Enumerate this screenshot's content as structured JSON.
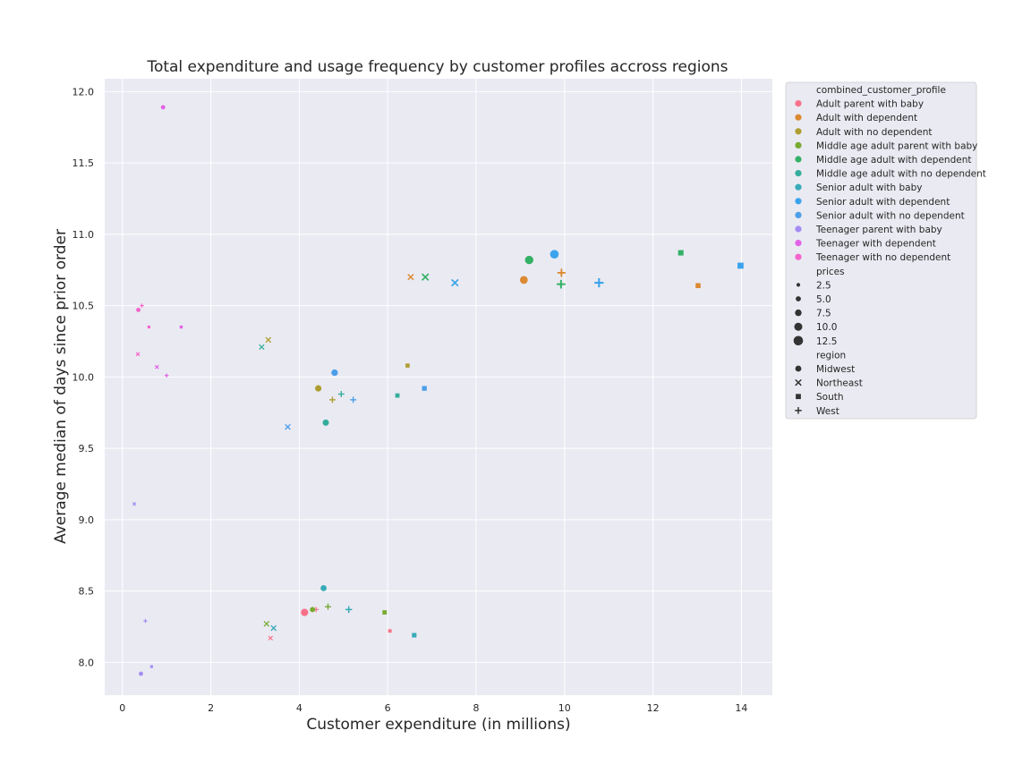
{
  "chart_data": {
    "type": "scatter",
    "title": "Total expenditure and usage frequency by customer profiles accross regions",
    "xlabel": "Customer expenditure (in millions)",
    "ylabel": "Average median of days since prior order",
    "xlim": [
      -0.4,
      14.7
    ],
    "ylim": [
      7.77,
      12.09
    ],
    "x_ticks": [
      0,
      2,
      4,
      6,
      8,
      10,
      12,
      14
    ],
    "x_tick_labels": [
      "0",
      "2",
      "4",
      "6",
      "8",
      "10",
      "12",
      "14"
    ],
    "y_ticks": [
      8.0,
      8.5,
      9.0,
      9.5,
      10.0,
      10.5,
      11.0,
      11.5,
      12.0
    ],
    "y_tick_labels": [
      "8.0",
      "8.5",
      "9.0",
      "9.5",
      "10.0",
      "10.5",
      "11.0",
      "11.5",
      "12.0"
    ],
    "grid": true,
    "background": "#eaeaf2",
    "legend": {
      "placement": "outside-right",
      "hue_title": "combined_customer_profile",
      "size_title": "prices",
      "style_title": "region",
      "sizes": [
        "2.5",
        "5.0",
        "7.5",
        "10.0",
        "12.5"
      ],
      "size_values": [
        2.5,
        5.0,
        7.5,
        10.0,
        12.5
      ],
      "regions": [
        "Midwest",
        "Northeast",
        "South",
        "West"
      ],
      "region_markers": [
        "circle",
        "x",
        "square",
        "plus"
      ]
    },
    "series": [
      {
        "name": "Adult parent with baby",
        "color": "#f77189",
        "points": [
          {
            "x": 4.12,
            "y": 8.35,
            "region": "Midwest",
            "price": 10.0
          },
          {
            "x": 3.35,
            "y": 8.17,
            "region": "Northeast",
            "price": 4.0
          },
          {
            "x": 6.05,
            "y": 8.22,
            "region": "South",
            "price": 3.5
          },
          {
            "x": 4.38,
            "y": 8.37,
            "region": "West",
            "price": 5.0
          }
        ]
      },
      {
        "name": "Adult with dependent",
        "color": "#dc8932",
        "points": [
          {
            "x": 9.08,
            "y": 10.68,
            "region": "Midwest",
            "price": 11.0
          },
          {
            "x": 6.52,
            "y": 10.7,
            "region": "Northeast",
            "price": 7.0
          },
          {
            "x": 13.02,
            "y": 10.64,
            "region": "South",
            "price": 7.0
          },
          {
            "x": 9.93,
            "y": 10.73,
            "region": "West",
            "price": 10.0
          }
        ]
      },
      {
        "name": "Adult with no dependent",
        "color": "#ae9d31",
        "points": [
          {
            "x": 4.43,
            "y": 9.92,
            "region": "Midwest",
            "price": 8.0
          },
          {
            "x": 3.3,
            "y": 10.26,
            "region": "Northeast",
            "price": 6.0
          },
          {
            "x": 6.45,
            "y": 10.08,
            "region": "South",
            "price": 5.0
          },
          {
            "x": 4.75,
            "y": 9.84,
            "region": "West",
            "price": 6.5
          }
        ]
      },
      {
        "name": "Middle age adult parent with baby",
        "color": "#77ab31",
        "points": [
          {
            "x": 4.3,
            "y": 8.37,
            "region": "Midwest",
            "price": 6.0
          },
          {
            "x": 3.26,
            "y": 8.27,
            "region": "Northeast",
            "price": 6.0
          },
          {
            "x": 5.93,
            "y": 8.35,
            "region": "South",
            "price": 5.5
          },
          {
            "x": 4.65,
            "y": 8.39,
            "region": "West",
            "price": 6.5
          }
        ]
      },
      {
        "name": "Middle age adult with dependent",
        "color": "#33b166",
        "points": [
          {
            "x": 9.2,
            "y": 10.82,
            "region": "Midwest",
            "price": 12.0
          },
          {
            "x": 6.85,
            "y": 10.7,
            "region": "Northeast",
            "price": 9.0
          },
          {
            "x": 12.63,
            "y": 10.87,
            "region": "South",
            "price": 8.0
          },
          {
            "x": 9.92,
            "y": 10.65,
            "region": "West",
            "price": 11.0
          }
        ]
      },
      {
        "name": "Middle age adult with no dependent",
        "color": "#35ad9c",
        "points": [
          {
            "x": 4.6,
            "y": 9.68,
            "region": "Midwest",
            "price": 8.0
          },
          {
            "x": 3.15,
            "y": 10.21,
            "region": "Northeast",
            "price": 5.5
          },
          {
            "x": 6.22,
            "y": 9.87,
            "region": "South",
            "price": 5.5
          },
          {
            "x": 4.95,
            "y": 9.88,
            "region": "West",
            "price": 6.5
          }
        ]
      },
      {
        "name": "Senior adult with baby",
        "color": "#38aab8",
        "points": [
          {
            "x": 4.55,
            "y": 8.52,
            "region": "Midwest",
            "price": 7.5
          },
          {
            "x": 3.42,
            "y": 8.24,
            "region": "Northeast",
            "price": 6.0
          },
          {
            "x": 6.6,
            "y": 8.19,
            "region": "South",
            "price": 6.0
          },
          {
            "x": 5.12,
            "y": 8.37,
            "region": "West",
            "price": 7.5
          }
        ]
      },
      {
        "name": "Senior adult with dependent",
        "color": "#3ba3ec",
        "points": [
          {
            "x": 9.77,
            "y": 10.86,
            "region": "Midwest",
            "price": 12.5
          },
          {
            "x": 7.52,
            "y": 10.66,
            "region": "Northeast",
            "price": 9.0
          },
          {
            "x": 13.98,
            "y": 10.78,
            "region": "South",
            "price": 9.5
          },
          {
            "x": 10.78,
            "y": 10.66,
            "region": "West",
            "price": 12.0
          }
        ]
      },
      {
        "name": "Senior adult with no dependent",
        "color": "#4c9ee8",
        "points": [
          {
            "x": 4.8,
            "y": 10.03,
            "region": "Midwest",
            "price": 8.5
          },
          {
            "x": 3.74,
            "y": 9.65,
            "region": "Northeast",
            "price": 6.0
          },
          {
            "x": 6.83,
            "y": 9.92,
            "region": "South",
            "price": 6.5
          },
          {
            "x": 5.22,
            "y": 9.84,
            "region": "West",
            "price": 6.5
          }
        ]
      },
      {
        "name": "Teenager parent with baby",
        "color": "#a48cf4",
        "points": [
          {
            "x": 0.42,
            "y": 7.92,
            "region": "Midwest",
            "price": 4.0
          },
          {
            "x": 0.27,
            "y": 9.11,
            "region": "Northeast",
            "price": 2.0
          },
          {
            "x": 0.66,
            "y": 7.97,
            "region": "South",
            "price": 2.0
          },
          {
            "x": 0.52,
            "y": 8.29,
            "region": "West",
            "price": 2.5
          }
        ]
      },
      {
        "name": "Teenager with dependent",
        "color": "#e163e5",
        "points": [
          {
            "x": 0.92,
            "y": 11.89,
            "region": "Midwest",
            "price": 4.0
          },
          {
            "x": 0.78,
            "y": 10.07,
            "region": "Northeast",
            "price": 2.5
          },
          {
            "x": 1.33,
            "y": 10.35,
            "region": "South",
            "price": 2.5
          },
          {
            "x": 1.0,
            "y": 10.01,
            "region": "West",
            "price": 2.5
          }
        ]
      },
      {
        "name": "Teenager with no dependent",
        "color": "#f565cc",
        "points": [
          {
            "x": 0.36,
            "y": 10.47,
            "region": "Midwest",
            "price": 4.0
          },
          {
            "x": 0.35,
            "y": 10.16,
            "region": "Northeast",
            "price": 2.5
          },
          {
            "x": 0.6,
            "y": 10.35,
            "region": "South",
            "price": 2.0
          },
          {
            "x": 0.44,
            "y": 10.5,
            "region": "West",
            "price": 2.5
          }
        ]
      }
    ]
  }
}
